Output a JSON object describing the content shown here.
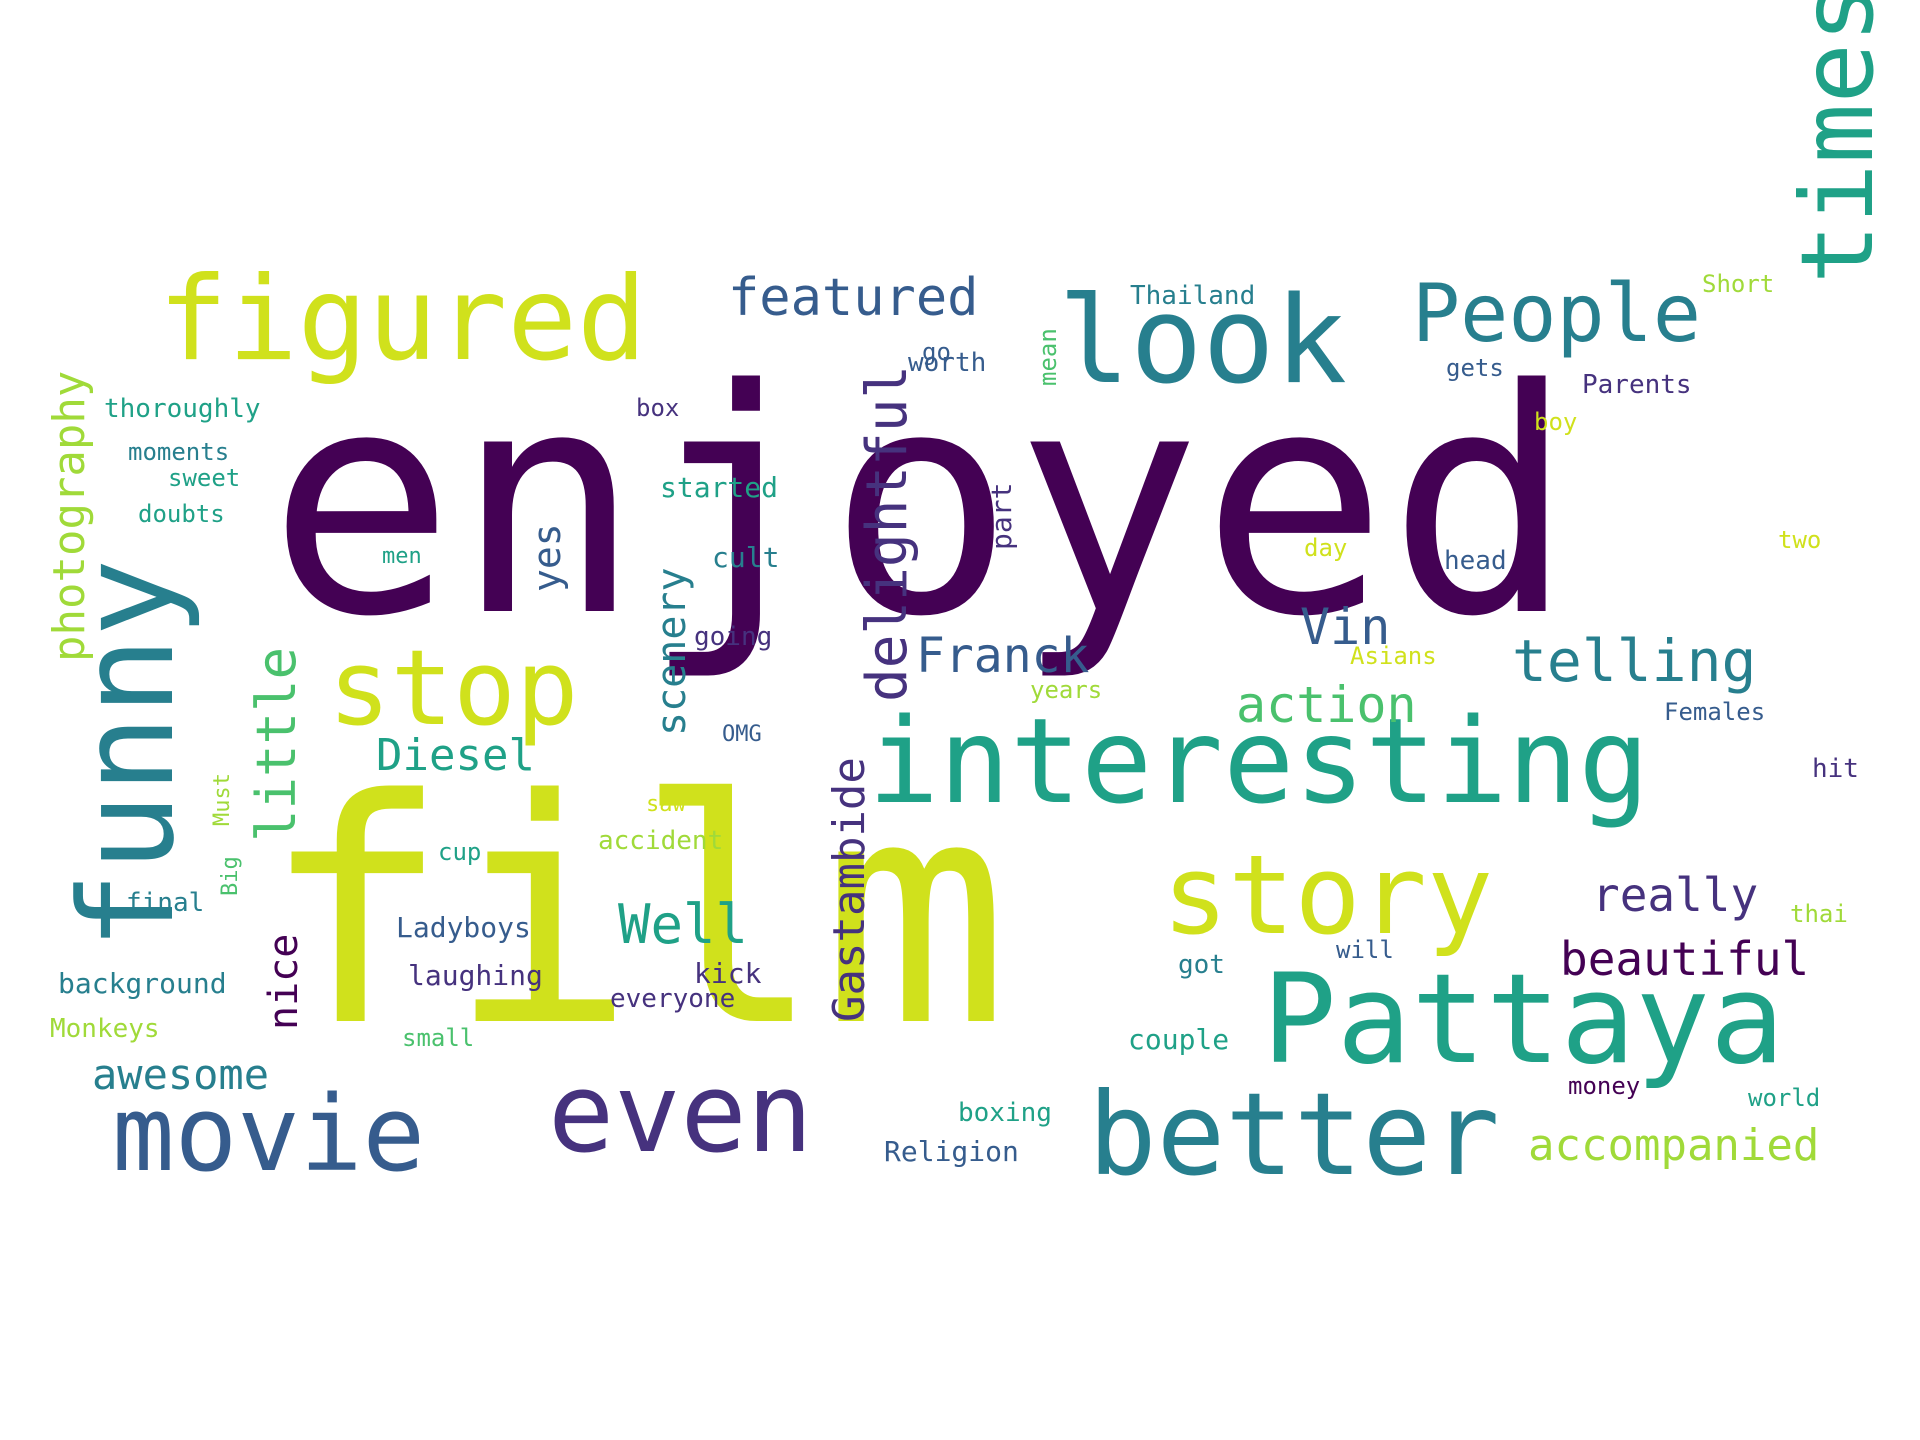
{
  "palette": {
    "c1": "#440154",
    "c2": "#46327e",
    "c3": "#365c8d",
    "c4": "#277f8e",
    "c5": "#1fa187",
    "c6": "#4ac16d",
    "c7": "#a0da39",
    "c8": "#d0e11c"
  },
  "words": [
    {
      "id": "enjoyed",
      "text": "enjoyed",
      "color": "c1"
    },
    {
      "id": "film",
      "text": "film",
      "color": "c8"
    },
    {
      "id": "figured",
      "text": "figured",
      "color": "c8"
    },
    {
      "id": "look",
      "text": "look",
      "color": "c4"
    },
    {
      "id": "times",
      "text": "times",
      "color": "c5"
    },
    {
      "id": "people",
      "text": "People",
      "color": "c4"
    },
    {
      "id": "featured",
      "text": "featured",
      "color": "c3"
    },
    {
      "id": "interesting",
      "text": "interesting",
      "color": "c5"
    },
    {
      "id": "stop",
      "text": "stop",
      "color": "c8"
    },
    {
      "id": "funny",
      "text": "funny",
      "color": "c4"
    },
    {
      "id": "story",
      "text": "story",
      "color": "c8"
    },
    {
      "id": "pattaya",
      "text": "Pattaya",
      "color": "c5"
    },
    {
      "id": "better",
      "text": "better",
      "color": "c4"
    },
    {
      "id": "movie",
      "text": "movie",
      "color": "c3"
    },
    {
      "id": "even",
      "text": "even",
      "color": "c2"
    },
    {
      "id": "delightful",
      "text": "delightful",
      "color": "c2"
    },
    {
      "id": "photography",
      "text": "photography",
      "color": "c7"
    },
    {
      "id": "little",
      "text": "little",
      "color": "c6"
    },
    {
      "id": "yes",
      "text": "yes",
      "color": "c3"
    },
    {
      "id": "scenery",
      "text": "scenery",
      "color": "c4"
    },
    {
      "id": "telling",
      "text": "telling",
      "color": "c4"
    },
    {
      "id": "vin",
      "text": "Vin",
      "color": "c3"
    },
    {
      "id": "franck",
      "text": "Franck",
      "color": "c3"
    },
    {
      "id": "diesel",
      "text": "Diesel",
      "color": "c5"
    },
    {
      "id": "action",
      "text": "action",
      "color": "c6"
    },
    {
      "id": "gastambide",
      "text": "Gastambide",
      "color": "c2"
    },
    {
      "id": "well",
      "text": "Well",
      "color": "c5"
    },
    {
      "id": "really",
      "text": "really",
      "color": "c2"
    },
    {
      "id": "beautiful",
      "text": "beautiful",
      "color": "c1"
    },
    {
      "id": "accompanied",
      "text": "accompanied",
      "color": "c7"
    },
    {
      "id": "awesome",
      "text": "awesome",
      "color": "c4"
    },
    {
      "id": "nice",
      "text": "nice",
      "color": "c1"
    },
    {
      "id": "thailand",
      "text": "Thailand",
      "color": "c4"
    },
    {
      "id": "short",
      "text": "Short",
      "color": "c7"
    },
    {
      "id": "go",
      "text": "go",
      "color": "c3"
    },
    {
      "id": "mean",
      "text": "mean",
      "color": "c6"
    },
    {
      "id": "worth",
      "text": "worth",
      "color": "c3"
    },
    {
      "id": "gets",
      "text": "gets",
      "color": "c3"
    },
    {
      "id": "parents",
      "text": "Parents",
      "color": "c2"
    },
    {
      "id": "thoroughly",
      "text": "thoroughly",
      "color": "c5"
    },
    {
      "id": "box",
      "text": "box",
      "color": "c2"
    },
    {
      "id": "boy",
      "text": "boy",
      "color": "c8"
    },
    {
      "id": "moments",
      "text": "moments",
      "color": "c4"
    },
    {
      "id": "sweet",
      "text": "sweet",
      "color": "c5"
    },
    {
      "id": "doubts",
      "text": "doubts",
      "color": "c5"
    },
    {
      "id": "started",
      "text": "started",
      "color": "c5"
    },
    {
      "id": "part",
      "text": "part",
      "color": "c2"
    },
    {
      "id": "men",
      "text": "men",
      "color": "c5"
    },
    {
      "id": "cult",
      "text": "cult",
      "color": "c4"
    },
    {
      "id": "day",
      "text": "day",
      "color": "c8"
    },
    {
      "id": "head",
      "text": "head",
      "color": "c3"
    },
    {
      "id": "two",
      "text": "two",
      "color": "c8"
    },
    {
      "id": "going",
      "text": "going",
      "color": "c2"
    },
    {
      "id": "asians",
      "text": "Asians",
      "color": "c8"
    },
    {
      "id": "years",
      "text": "years",
      "color": "c7"
    },
    {
      "id": "omg",
      "text": "OMG",
      "color": "c3"
    },
    {
      "id": "females",
      "text": "Females",
      "color": "c3"
    },
    {
      "id": "must",
      "text": "Must",
      "color": "c7"
    },
    {
      "id": "hit",
      "text": "hit",
      "color": "c2"
    },
    {
      "id": "saw",
      "text": "saw",
      "color": "c8"
    },
    {
      "id": "accident",
      "text": "accident",
      "color": "c7"
    },
    {
      "id": "big",
      "text": "Big",
      "color": "c6"
    },
    {
      "id": "cup",
      "text": "cup",
      "color": "c5"
    },
    {
      "id": "final",
      "text": "final",
      "color": "c4"
    },
    {
      "id": "thai",
      "text": "thai",
      "color": "c7"
    },
    {
      "id": "ladyboys",
      "text": "Ladyboys",
      "color": "c3"
    },
    {
      "id": "will",
      "text": "will",
      "color": "c3"
    },
    {
      "id": "laughing",
      "text": "laughing",
      "color": "c2"
    },
    {
      "id": "kick",
      "text": "kick",
      "color": "c2"
    },
    {
      "id": "got",
      "text": "got",
      "color": "c4"
    },
    {
      "id": "background",
      "text": "background",
      "color": "c4"
    },
    {
      "id": "everyone",
      "text": "everyone",
      "color": "c2"
    },
    {
      "id": "monkeys",
      "text": "Monkeys",
      "color": "c7"
    },
    {
      "id": "small",
      "text": "small",
      "color": "c6"
    },
    {
      "id": "couple",
      "text": "couple",
      "color": "c5"
    },
    {
      "id": "money",
      "text": "money",
      "color": "c1"
    },
    {
      "id": "world",
      "text": "world",
      "color": "c5"
    },
    {
      "id": "boxing",
      "text": "boxing",
      "color": "c5"
    },
    {
      "id": "religion",
      "text": "Religion",
      "color": "c3"
    }
  ]
}
